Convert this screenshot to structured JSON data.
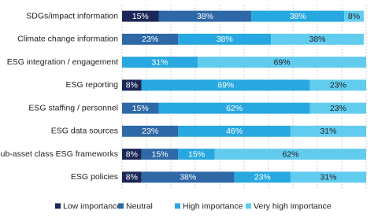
{
  "chart_data": {
    "type": "stacked-bar-horizontal",
    "categories": [
      "SDGs/impact information",
      "Climate change information",
      "ESG integration / engagement",
      "ESG reporting",
      "ESG staffing / personnel",
      "ESG data sources",
      "Sub-asset class ESG frameworks",
      "ESG policies"
    ],
    "series": [
      {
        "name": "Low importance",
        "color": "#1b2857",
        "values": [
          15,
          null,
          null,
          8,
          null,
          null,
          8,
          8
        ],
        "value_labels": [
          "15%",
          null,
          null,
          "8%",
          null,
          null,
          "8%",
          "8%"
        ]
      },
      {
        "name": "Neutral",
        "color": "#2e68a6",
        "values": [
          38,
          23,
          null,
          null,
          15,
          23,
          15,
          38
        ],
        "value_labels": [
          "38%",
          "23%",
          null,
          null,
          "15%",
          "23%",
          "15%",
          "38%"
        ]
      },
      {
        "name": "High importance",
        "color": "#28a8e0",
        "values": [
          38,
          38,
          31,
          69,
          62,
          46,
          15,
          23
        ],
        "value_labels": [
          "38%",
          "38%",
          "31%",
          "69%",
          "62%",
          "46%",
          "15%",
          "23%"
        ]
      },
      {
        "name": "Very high importance",
        "color": "#62ccef",
        "values": [
          8,
          38,
          69,
          23,
          23,
          31,
          62,
          31
        ],
        "value_labels": [
          "8%",
          "38%",
          "69%",
          "23%",
          "23%",
          "31%",
          "62%",
          "31%"
        ]
      }
    ],
    "xlim": [
      0,
      100
    ],
    "xticks": [
      0,
      10,
      20,
      30,
      40,
      50,
      60,
      70,
      80,
      90,
      100
    ],
    "grid": true,
    "legend": "bottom"
  }
}
